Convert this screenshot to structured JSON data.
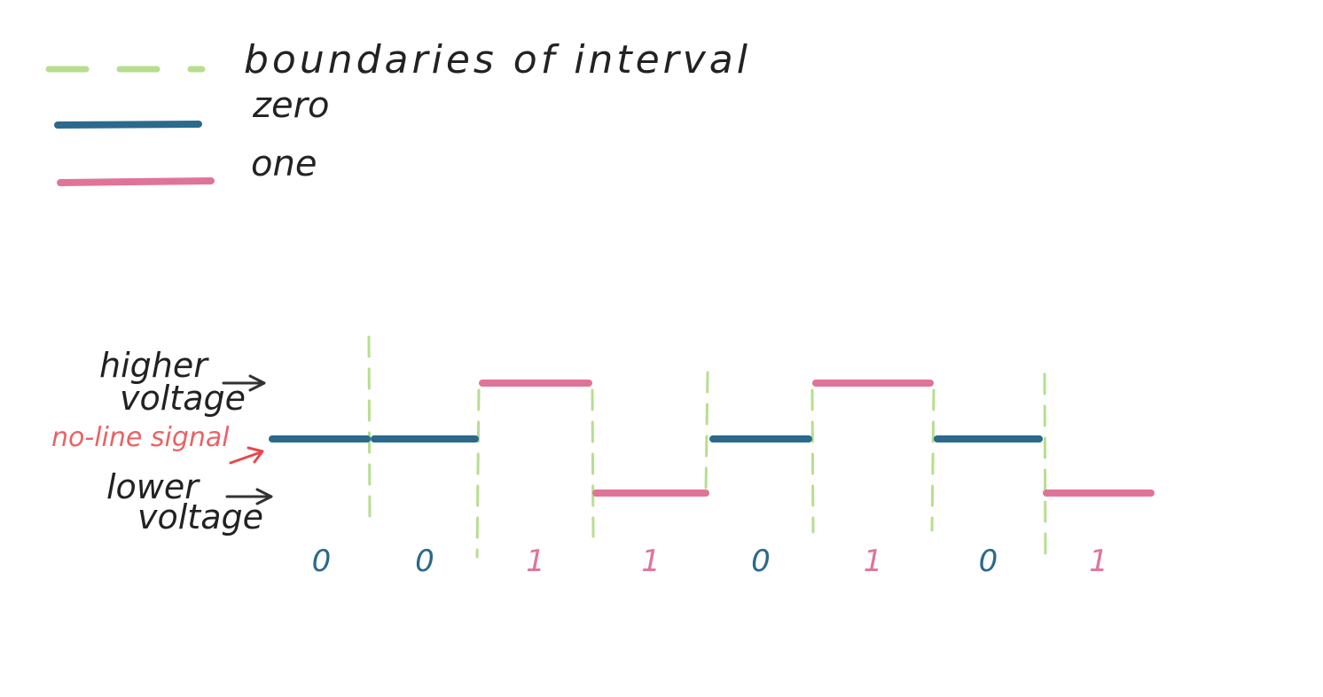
{
  "colors": {
    "boundary": "#b7de8f",
    "zero": "#2a6a8c",
    "one": "#e07497",
    "text": "#222222",
    "no_line": "#e8474a"
  },
  "legend": {
    "boundary_label": "boundaries of interval",
    "zero_label": "zero",
    "one_label": "one"
  },
  "labels": {
    "higher_voltage": [
      "higher",
      "voltage"
    ],
    "no_line_signal": "no-line signal",
    "lower_voltage": [
      "lower",
      "voltage"
    ]
  },
  "signal": {
    "bits": [
      "0",
      "0",
      "1",
      "1",
      "0",
      "1",
      "0",
      "1"
    ],
    "levels": [
      "zero",
      "zero",
      "high",
      "low",
      "zero",
      "high",
      "zero",
      "low"
    ]
  }
}
